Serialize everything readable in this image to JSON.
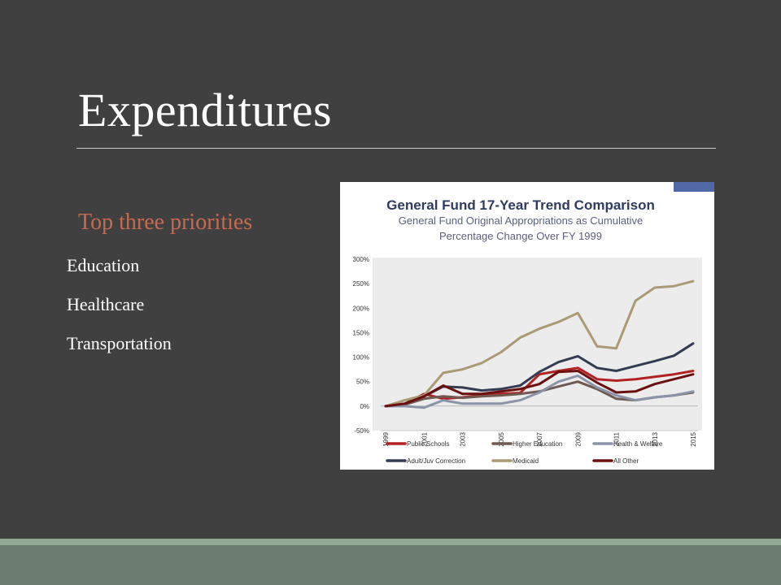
{
  "slide": {
    "title": "Expenditures",
    "subheading": "Top three priorities",
    "bullets": [
      "Education",
      "Healthcare",
      "Transportation"
    ]
  },
  "chart_data": {
    "type": "line",
    "title": "General Fund 17-Year Trend Comparison",
    "subtitle_line1": "General Fund Original Appropriations as Cumulative",
    "subtitle_line2": "Percentage Change Over FY 1999",
    "x": [
      1999,
      2000,
      2001,
      2002,
      2003,
      2004,
      2005,
      2006,
      2007,
      2008,
      2009,
      2010,
      2011,
      2012,
      2013,
      2014,
      2015
    ],
    "x_tick_labels": [
      "1999",
      "2001",
      "2003",
      "2005",
      "2007",
      "2009",
      "2011",
      "2013",
      "2015"
    ],
    "y_tick_labels": [
      "300%",
      "250%",
      "200%",
      "150%",
      "100%",
      "50%",
      "0%",
      "-50%"
    ],
    "ylim": [
      -50,
      300
    ],
    "y_unit": "%",
    "grid": false,
    "legend_position": "bottom",
    "series": [
      {
        "name": "Public Schools",
        "color": "#b22222",
        "values": [
          0,
          5,
          25,
          15,
          18,
          22,
          25,
          27,
          65,
          72,
          78,
          55,
          52,
          55,
          60,
          65,
          72
        ]
      },
      {
        "name": "Higher Education",
        "color": "#6e5a50",
        "values": [
          0,
          3,
          15,
          20,
          17,
          20,
          22,
          25,
          30,
          40,
          50,
          35,
          15,
          12,
          18,
          22,
          28
        ]
      },
      {
        "name": "Health & Welfare",
        "color": "#8a93a8",
        "values": [
          0,
          0,
          -3,
          12,
          5,
          5,
          5,
          12,
          28,
          50,
          62,
          38,
          22,
          12,
          18,
          22,
          30
        ]
      },
      {
        "name": "Adult/Juv Correction",
        "color": "#343b52",
        "values": [
          0,
          5,
          20,
          40,
          38,
          32,
          35,
          42,
          70,
          90,
          102,
          78,
          72,
          82,
          92,
          103,
          128
        ]
      },
      {
        "name": "Medicaid",
        "color": "#ab9a76",
        "values": [
          0,
          12,
          22,
          68,
          75,
          88,
          110,
          140,
          158,
          172,
          190,
          122,
          118,
          215,
          242,
          245,
          255
        ]
      },
      {
        "name": "All Other",
        "color": "#6b1010",
        "values": [
          0,
          5,
          20,
          42,
          25,
          25,
          30,
          35,
          45,
          70,
          72,
          48,
          28,
          30,
          45,
          55,
          65
        ]
      }
    ]
  }
}
